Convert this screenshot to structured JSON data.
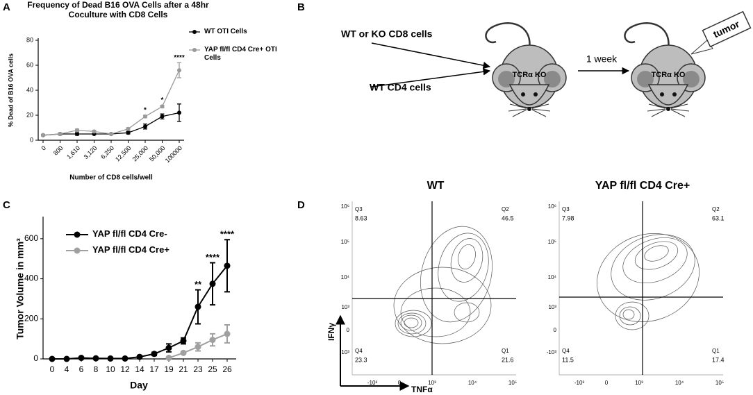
{
  "panels": [
    "A",
    "B",
    "C",
    "D"
  ],
  "chart_data": [
    {
      "type": "line",
      "title": "Frequency of Dead B16 OVA Cells after a 48hr Coculture with CD8 Cells",
      "x_label": "Number of CD8 cells/well",
      "y_label": "% Dead of B16 OVA cells",
      "categories": [
        "0",
        "800",
        "1,610",
        "3,120",
        "6,250",
        "12,500",
        "25,000",
        "50,000",
        "100000"
      ],
      "series": [
        {
          "name": "WT OTI Cells",
          "color": "#000000",
          "values": [
            4,
            5,
            5,
            5,
            5,
            6,
            11,
            19,
            22
          ],
          "errors": [
            0.5,
            0.5,
            1,
            0.5,
            0.5,
            1,
            2,
            2,
            7
          ]
        },
        {
          "name": "YAP fl/fl CD4 Cre+ OTI Cells",
          "color": "#999999",
          "values": [
            4,
            5,
            8,
            7,
            5,
            9,
            19,
            27,
            56
          ],
          "errors": [
            0.5,
            1,
            1,
            1,
            0.5,
            1,
            1,
            1,
            6
          ]
        }
      ],
      "significance": [
        null,
        null,
        null,
        null,
        null,
        null,
        "*",
        "*",
        "****"
      ],
      "ylim": [
        0,
        80
      ],
      "yticks": [
        0,
        20,
        40,
        60,
        80
      ],
      "legend": "right"
    },
    {
      "type": "line",
      "x_label": "Day",
      "y_label": "Tumor Volume in mm³",
      "categories": [
        "0",
        "4",
        "6",
        "8",
        "10",
        "12",
        "14",
        "17",
        "19",
        "21",
        "23",
        "25",
        "26"
      ],
      "series": [
        {
          "name": "YAP fl/fl CD4 Cre-",
          "color": "#000000",
          "values": [
            0,
            0,
            5,
            3,
            2,
            2,
            10,
            25,
            55,
            90,
            260,
            375,
            465
          ],
          "errors": [
            2,
            2,
            3,
            2,
            2,
            2,
            5,
            8,
            20,
            15,
            85,
            105,
            130
          ]
        },
        {
          "name": "YAP fl/fl CD4 Cre+",
          "color": "#a0a0a0",
          "values": [
            null,
            null,
            null,
            null,
            null,
            null,
            null,
            null,
            5,
            30,
            60,
            95,
            125
          ],
          "errors": [
            null,
            null,
            null,
            null,
            null,
            null,
            null,
            null,
            3,
            5,
            20,
            30,
            45
          ]
        }
      ],
      "significance": [
        null,
        null,
        null,
        null,
        null,
        null,
        null,
        null,
        null,
        null,
        "**",
        "****",
        "****"
      ],
      "ylim": [
        0,
        700
      ],
      "yticks": [
        0,
        200,
        400,
        600
      ],
      "legend": "upper left"
    }
  ],
  "diagram": {
    "inputs": [
      "WT or KO CD8 cells",
      "WT CD4 cells"
    ],
    "mice": [
      "TCRα KO",
      "TCRα KO"
    ],
    "step": "1 week",
    "tumor": "tumor"
  },
  "flow": {
    "y_label": "IFNγ",
    "x_label": "TNFα",
    "yticks": [
      "10⁶",
      "10⁵",
      "10⁴",
      "10³",
      "0",
      "-10³"
    ],
    "xticks": [
      "-10³",
      "0",
      "10³",
      "10⁴",
      "10⁵"
    ],
    "plots": [
      {
        "title": "WT",
        "quadrants": [
          {
            "name": "Q3",
            "value": 8.63
          },
          {
            "name": "Q2",
            "value": 46.5
          },
          {
            "name": "Q4",
            "value": 23.3
          },
          {
            "name": "Q1",
            "value": 21.6
          }
        ]
      },
      {
        "title": "YAP fl/fl CD4 Cre+",
        "quadrants": [
          {
            "name": "Q3",
            "value": 7.98
          },
          {
            "name": "Q2",
            "value": 63.1
          },
          {
            "name": "Q4",
            "value": 11.5
          },
          {
            "name": "Q1",
            "value": 17.4
          }
        ]
      }
    ]
  }
}
